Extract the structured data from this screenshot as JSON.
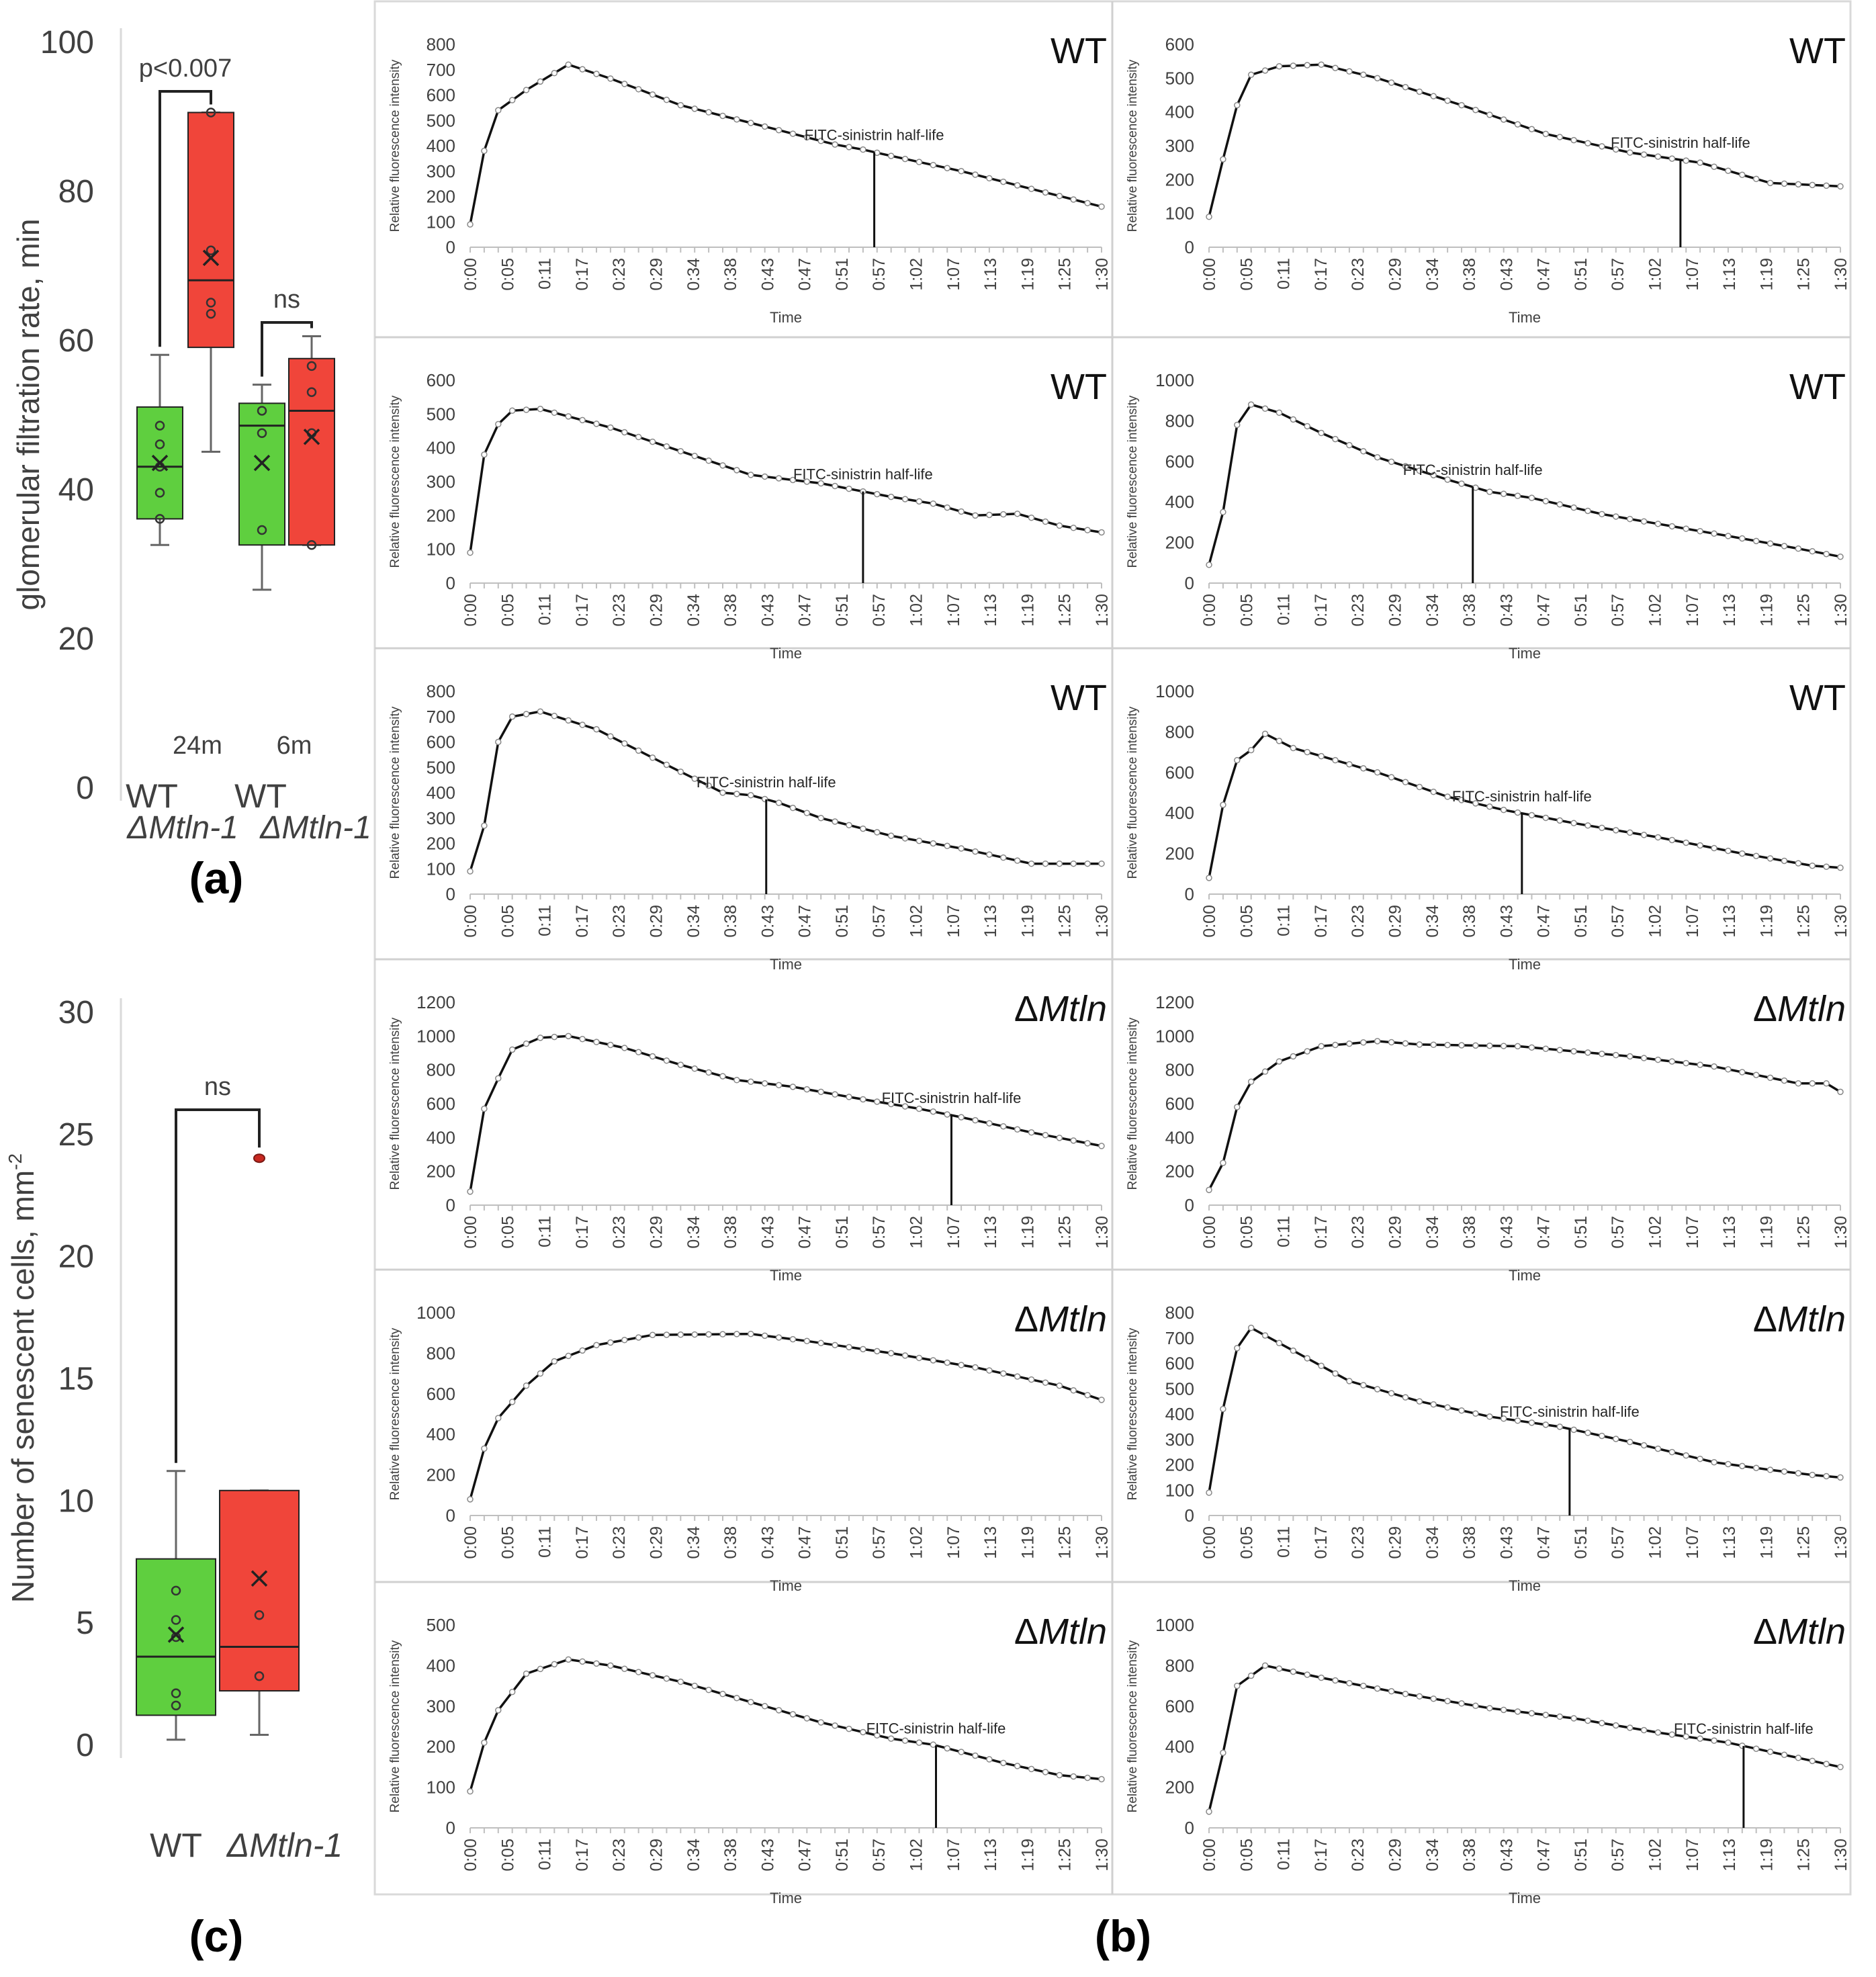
{
  "figure": {
    "label_a": "(a)",
    "label_b": "(b)",
    "label_c": "(c)"
  },
  "chart_data": [
    {
      "id": "a",
      "type": "box",
      "ylabel": "glomerular filtration rate, min",
      "ylim": [
        0,
        100
      ],
      "yticks": [
        "0",
        "20",
        "40",
        "60",
        "80",
        "100"
      ],
      "groups": [
        {
          "age": "24m",
          "genotype": "WT",
          "color": "#5fcf3f",
          "whisker_min": 32.5,
          "q1": 36,
          "median": 43,
          "q3": 51,
          "whisker_max": 58,
          "mean": 43.5,
          "points": [
            36,
            39.5,
            43,
            46,
            48.5
          ]
        },
        {
          "age": "24m",
          "genotype": "ΔMtln-1",
          "color": "#f0453a",
          "whisker_min": 45,
          "q1": 59,
          "median": 68,
          "q3": 90.5,
          "whisker_max": 90.5,
          "mean": 71,
          "points": [
            63.5,
            65,
            72,
            90.5
          ]
        },
        {
          "age": "6m",
          "genotype": "WT",
          "color": "#5fcf3f",
          "whisker_min": 26.5,
          "q1": 32.5,
          "median": 48.5,
          "q3": 51.5,
          "whisker_max": 54,
          "mean": 43.5,
          "points": [
            34.5,
            47.5,
            50.5
          ]
        },
        {
          "age": "6m",
          "genotype": "ΔMtln-1",
          "color": "#f0453a",
          "whisker_min": 32.5,
          "q1": 32.5,
          "median": 50.5,
          "q3": 57.5,
          "whisker_max": 60.5,
          "mean": 47,
          "points": [
            32.5,
            47.5,
            53,
            56.5
          ]
        }
      ],
      "comparisons": [
        {
          "label": "p<0.007"
        },
        {
          "label": "ns"
        }
      ],
      "age_labels": [
        "24m",
        "6m"
      ],
      "xlabels_top": [
        "WT",
        "WT"
      ],
      "xlabels_bottom": [
        "ΔMtln-1",
        "ΔMtln-1"
      ]
    },
    {
      "id": "c",
      "type": "box",
      "ylabel": "Number of senescent cells, mm",
      "ylabel_sup": "-2",
      "ylim": [
        0,
        30
      ],
      "yticks": [
        "0",
        "5",
        "10",
        "15",
        "20",
        "25",
        "30"
      ],
      "groups": [
        {
          "genotype": "WT",
          "color": "#5fcf3f",
          "whisker_min": 0.2,
          "q1": 1.2,
          "median": 3.6,
          "q3": 7.6,
          "whisker_max": 11.2,
          "mean": 4.5,
          "points": [
            1.6,
            2.1,
            4.4,
            5.1,
            6.3
          ]
        },
        {
          "genotype": "ΔMtln-1",
          "color": "#f0453a",
          "whisker_min": 0.4,
          "q1": 2.2,
          "median": 4.0,
          "q3": 10.4,
          "whisker_max": 10.4,
          "mean": 6.8,
          "points": [
            2.8,
            5.3
          ],
          "outlier": 24
        }
      ],
      "comparison": "ns",
      "xlabels": [
        "WT",
        "ΔMtln-1"
      ]
    },
    {
      "id": "b",
      "type": "line",
      "xlabel": "Time",
      "ylabel": "Relative fluorescence intensity",
      "half_life_label": "FITC-sinistrin half-life",
      "xtick_labels": [
        "0:00",
        "0:05",
        "0:11",
        "0:17",
        "0:23",
        "0:29",
        "0:34",
        "0:38",
        "0:43",
        "0:47",
        "0:51",
        "0:57",
        "1:02",
        "1:07",
        "1:13",
        "1:19",
        "1:25",
        "1:30"
      ],
      "n_points": 46,
      "panels": [
        {
          "genotype": "WT",
          "genotype_italic": false,
          "ymax": 800,
          "ystep": 100,
          "knots": [
            [
              0,
              90
            ],
            [
              1,
              380
            ],
            [
              2,
              540
            ],
            [
              4,
              620
            ],
            [
              7,
              720
            ],
            [
              10,
              665
            ],
            [
              15,
              560
            ],
            [
              20,
              490
            ],
            [
              26,
              405
            ],
            [
              28,
              385
            ],
            [
              30,
              360
            ],
            [
              35,
              300
            ],
            [
              40,
              230
            ],
            [
              45,
              160
            ]
          ],
          "half_life_index": 28.8
        },
        {
          "genotype": "WT",
          "genotype_italic": false,
          "ymax": 600,
          "ystep": 100,
          "knots": [
            [
              0,
              90
            ],
            [
              1,
              260
            ],
            [
              2,
              420
            ],
            [
              3,
              510
            ],
            [
              5,
              535
            ],
            [
              8,
              540
            ],
            [
              12,
              500
            ],
            [
              18,
              420
            ],
            [
              24,
              335
            ],
            [
              30,
              280
            ],
            [
              35,
              250
            ],
            [
              40,
              190
            ],
            [
              45,
              180
            ]
          ],
          "half_life_index": 33.6
        },
        {
          "genotype": "WT",
          "genotype_italic": false,
          "ymax": 600,
          "ystep": 100,
          "knots": [
            [
              0,
              90
            ],
            [
              1,
              380
            ],
            [
              2,
              470
            ],
            [
              3,
              510
            ],
            [
              5,
              515
            ],
            [
              10,
              460
            ],
            [
              15,
              390
            ],
            [
              20,
              320
            ],
            [
              25,
              295
            ],
            [
              30,
              255
            ],
            [
              33,
              235
            ],
            [
              36,
              200
            ],
            [
              39,
              205
            ],
            [
              42,
              170
            ],
            [
              45,
              150
            ]
          ],
          "half_life_index": 28.0
        },
        {
          "genotype": "WT",
          "genotype_italic": false,
          "ymax": 1000,
          "ystep": 200,
          "knots": [
            [
              0,
              90
            ],
            [
              1,
              350
            ],
            [
              2,
              780
            ],
            [
              3,
              880
            ],
            [
              5,
              840
            ],
            [
              8,
              740
            ],
            [
              12,
              620
            ],
            [
              17,
              510
            ],
            [
              20,
              450
            ],
            [
              23,
              420
            ],
            [
              28,
              340
            ],
            [
              33,
              280
            ],
            [
              38,
              220
            ],
            [
              42,
              170
            ],
            [
              45,
              130
            ]
          ],
          "half_life_index": 18.8
        },
        {
          "genotype": "WT",
          "genotype_italic": false,
          "ymax": 800,
          "ystep": 100,
          "knots": [
            [
              0,
              90
            ],
            [
              1,
              270
            ],
            [
              2,
              600
            ],
            [
              3,
              700
            ],
            [
              5,
              720
            ],
            [
              9,
              650
            ],
            [
              14,
              510
            ],
            [
              18,
              400
            ],
            [
              20,
              390
            ],
            [
              22,
              360
            ],
            [
              25,
              300
            ],
            [
              30,
              230
            ],
            [
              35,
              180
            ],
            [
              40,
              120
            ],
            [
              45,
              120
            ]
          ],
          "half_life_index": 21.1
        },
        {
          "genotype": "WT",
          "genotype_italic": false,
          "ymax": 1000,
          "ystep": 200,
          "knots": [
            [
              0,
              80
            ],
            [
              1,
              440
            ],
            [
              2,
              660
            ],
            [
              3,
              710
            ],
            [
              4,
              790
            ],
            [
              6,
              720
            ],
            [
              12,
              600
            ],
            [
              17,
              480
            ],
            [
              21,
              415
            ],
            [
              26,
              350
            ],
            [
              32,
              280
            ],
            [
              38,
              200
            ],
            [
              43,
              140
            ],
            [
              45,
              130
            ]
          ],
          "half_life_index": 22.3
        },
        {
          "genotype": "ΔMtln",
          "genotype_italic": true,
          "ymax": 1200,
          "ystep": 200,
          "knots": [
            [
              0,
              80
            ],
            [
              1,
              570
            ],
            [
              2,
              750
            ],
            [
              3,
              920
            ],
            [
              5,
              990
            ],
            [
              7,
              1000
            ],
            [
              11,
              930
            ],
            [
              15,
              830
            ],
            [
              19,
              740
            ],
            [
              23,
              700
            ],
            [
              27,
              640
            ],
            [
              32,
              570
            ],
            [
              35,
              520
            ],
            [
              40,
              430
            ],
            [
              45,
              350
            ]
          ],
          "half_life_index": 34.3
        },
        {
          "genotype": "ΔMtln",
          "genotype_italic": true,
          "ymax": 1200,
          "ystep": 200,
          "knots": [
            [
              0,
              90
            ],
            [
              1,
              250
            ],
            [
              2,
              580
            ],
            [
              3,
              730
            ],
            [
              5,
              850
            ],
            [
              8,
              940
            ],
            [
              12,
              970
            ],
            [
              15,
              950
            ],
            [
              22,
              940
            ],
            [
              30,
              880
            ],
            [
              36,
              820
            ],
            [
              42,
              720
            ],
            [
              44,
              720
            ],
            [
              45,
              670
            ]
          ],
          "half_life_index": null
        },
        {
          "genotype": "ΔMtln",
          "genotype_italic": true,
          "ymax": 1000,
          "ystep": 200,
          "knots": [
            [
              0,
              80
            ],
            [
              1,
              330
            ],
            [
              2,
              480
            ],
            [
              4,
              640
            ],
            [
              6,
              760
            ],
            [
              9,
              840
            ],
            [
              13,
              890
            ],
            [
              20,
              895
            ],
            [
              24,
              860
            ],
            [
              30,
              800
            ],
            [
              36,
              730
            ],
            [
              42,
              640
            ],
            [
              45,
              570
            ]
          ],
          "half_life_index": null
        },
        {
          "genotype": "ΔMtln",
          "genotype_italic": true,
          "ymax": 800,
          "ystep": 100,
          "knots": [
            [
              0,
              90
            ],
            [
              1,
              420
            ],
            [
              2,
              660
            ],
            [
              3,
              740
            ],
            [
              6,
              650
            ],
            [
              10,
              530
            ],
            [
              15,
              450
            ],
            [
              20,
              390
            ],
            [
              25,
              350
            ],
            [
              30,
              290
            ],
            [
              36,
              210
            ],
            [
              40,
              180
            ],
            [
              43,
              160
            ],
            [
              45,
              150
            ]
          ],
          "half_life_index": 25.7
        },
        {
          "genotype": "ΔMtln",
          "genotype_italic": true,
          "ymax": 500,
          "ystep": 100,
          "knots": [
            [
              0,
              90
            ],
            [
              1,
              210
            ],
            [
              2,
              290
            ],
            [
              4,
              380
            ],
            [
              7,
              415
            ],
            [
              10,
              400
            ],
            [
              15,
              360
            ],
            [
              20,
              310
            ],
            [
              25,
              260
            ],
            [
              30,
              220
            ],
            [
              33,
              205
            ],
            [
              38,
              160
            ],
            [
              42,
              130
            ],
            [
              45,
              120
            ]
          ],
          "half_life_index": 33.2
        },
        {
          "genotype": "ΔMtln",
          "genotype_italic": true,
          "ymax": 1000,
          "ystep": 200,
          "knots": [
            [
              0,
              80
            ],
            [
              1,
              370
            ],
            [
              2,
              700
            ],
            [
              4,
              800
            ],
            [
              8,
              740
            ],
            [
              14,
              660
            ],
            [
              20,
              590
            ],
            [
              26,
              540
            ],
            [
              32,
              470
            ],
            [
              37,
              420
            ],
            [
              41,
              360
            ],
            [
              45,
              300
            ]
          ],
          "half_life_index": 38.1
        }
      ]
    }
  ]
}
